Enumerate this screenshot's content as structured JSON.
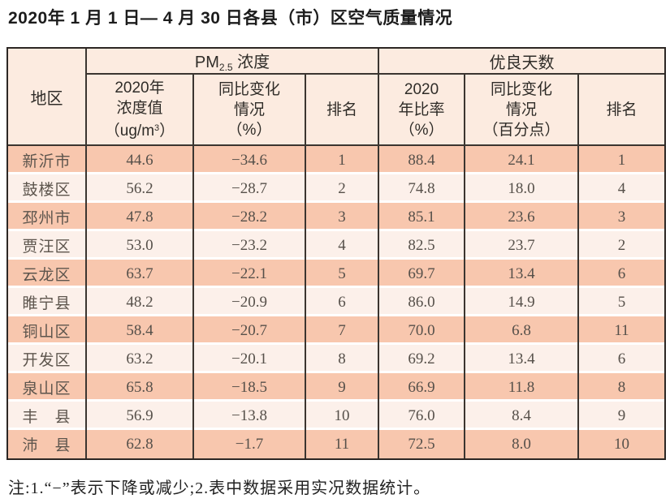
{
  "title": "2020年 1 月 1 日— 4 月 30 日各县（市）区空气质量情况",
  "table": {
    "corner": "地区",
    "groups": {
      "pm": {
        "prefix": "PM",
        "sub": "2.5",
        "suffix": " 浓度"
      },
      "days": {
        "label": "优良天数"
      }
    },
    "columns": {
      "pm_value": {
        "l1": "2020年",
        "l2": "浓度值",
        "l3a": "（ug/m",
        "l3sup": "3",
        "l3b": "）"
      },
      "pm_change": {
        "l1": "同比变化",
        "l2": "情况",
        "l3": "（%）"
      },
      "pm_rank": {
        "label": "排名"
      },
      "days_rate": {
        "l1": "2020",
        "l2": "年比率",
        "l3": "（%）"
      },
      "days_change": {
        "l1": "同比变化",
        "l2": "情况",
        "l3": "（百分点）"
      },
      "days_rank": {
        "label": "排名"
      }
    },
    "rows": [
      {
        "region": "新沂市",
        "pm_value": "44.6",
        "pm_change": "−34.6",
        "pm_rank": "1",
        "days_rate": "88.4",
        "days_change": "24.1",
        "days_rank": "1"
      },
      {
        "region": "鼓楼区",
        "pm_value": "56.2",
        "pm_change": "−28.7",
        "pm_rank": "2",
        "days_rate": "74.8",
        "days_change": "18.0",
        "days_rank": "4"
      },
      {
        "region": "邳州市",
        "pm_value": "47.8",
        "pm_change": "−28.2",
        "pm_rank": "3",
        "days_rate": "85.1",
        "days_change": "23.6",
        "days_rank": "3"
      },
      {
        "region": "贾汪区",
        "pm_value": "53.0",
        "pm_change": "−23.2",
        "pm_rank": "4",
        "days_rate": "82.5",
        "days_change": "23.7",
        "days_rank": "2"
      },
      {
        "region": "云龙区",
        "pm_value": "63.7",
        "pm_change": "−22.1",
        "pm_rank": "5",
        "days_rate": "69.7",
        "days_change": "13.4",
        "days_rank": "6"
      },
      {
        "region": "睢宁县",
        "pm_value": "48.2",
        "pm_change": "−20.9",
        "pm_rank": "6",
        "days_rate": "86.0",
        "days_change": "14.9",
        "days_rank": "5"
      },
      {
        "region": "铜山区",
        "pm_value": "58.4",
        "pm_change": "−20.7",
        "pm_rank": "7",
        "days_rate": "70.0",
        "days_change": "6.8",
        "days_rank": "11"
      },
      {
        "region": "开发区",
        "pm_value": "63.2",
        "pm_change": "−20.1",
        "pm_rank": "8",
        "days_rate": "69.2",
        "days_change": "13.4",
        "days_rank": "6"
      },
      {
        "region": "泉山区",
        "pm_value": "65.8",
        "pm_change": "−18.5",
        "pm_rank": "9",
        "days_rate": "66.9",
        "days_change": "11.8",
        "days_rank": "8"
      },
      {
        "region": "丰　县",
        "pm_value": "56.9",
        "pm_change": "−13.8",
        "pm_rank": "10",
        "days_rate": "76.0",
        "days_change": "8.4",
        "days_rank": "9"
      },
      {
        "region": "沛　县",
        "pm_value": "62.8",
        "pm_change": "−1.7",
        "pm_rank": "11",
        "days_rate": "72.5",
        "days_change": "8.0",
        "days_rank": "10"
      }
    ]
  },
  "footnote": "注:1.“−”表示下降或减少;2.表中数据采用实况数据统计。",
  "colors": {
    "row_salmon": "#f8c7ae",
    "row_light": "#fcf0ea",
    "header_bg": "#fcebe0",
    "grid_line": "#3b3530",
    "outer_border": "#2c2724",
    "body_text": "#56504a",
    "header_text": "#2f2c28"
  }
}
